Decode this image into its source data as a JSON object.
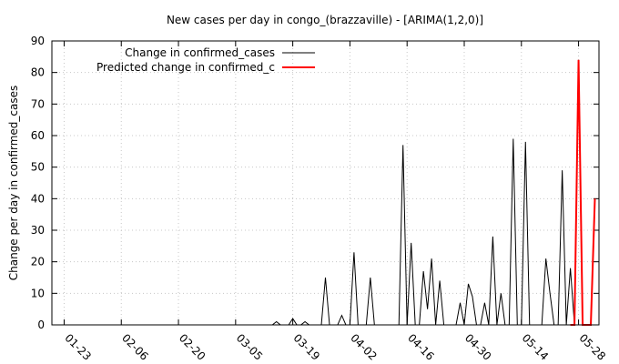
{
  "chart_data": {
    "type": "line",
    "title": "New cases per day in congo_(brazzaville) -  [ARIMA(1,2,0)]",
    "xlabel": "",
    "ylabel": "Change per day in confirmed_cases",
    "ylim": [
      0,
      90
    ],
    "yticks": [
      0,
      10,
      20,
      30,
      40,
      50,
      60,
      70,
      80,
      90
    ],
    "xlim": [
      "2020-01-20",
      "2020-06-02"
    ],
    "xticks": [
      "01-23",
      "02-06",
      "02-20",
      "03-05",
      "03-19",
      "04-02",
      "04-16",
      "04-30",
      "05-14",
      "05-28"
    ],
    "grid": true,
    "legend_position": "top-left",
    "series": [
      {
        "name": "Change in confirmed_cases",
        "color": "#000000",
        "x": [
          "2020-01-22",
          "2020-03-14",
          "2020-03-15",
          "2020-03-16",
          "2020-03-18",
          "2020-03-19",
          "2020-03-20",
          "2020-03-22",
          "2020-03-23",
          "2020-03-24",
          "2020-03-25",
          "2020-03-26",
          "2020-03-27",
          "2020-03-28",
          "2020-03-29",
          "2020-03-30",
          "2020-03-31",
          "2020-04-01",
          "2020-04-02",
          "2020-04-03",
          "2020-04-04",
          "2020-04-05",
          "2020-04-06",
          "2020-04-07",
          "2020-04-08",
          "2020-04-09",
          "2020-04-10",
          "2020-04-11",
          "2020-04-12",
          "2020-04-13",
          "2020-04-14",
          "2020-04-15",
          "2020-04-16",
          "2020-04-17",
          "2020-04-18",
          "2020-04-19",
          "2020-04-20",
          "2020-04-21",
          "2020-04-22",
          "2020-04-23",
          "2020-04-24",
          "2020-04-25",
          "2020-04-26",
          "2020-04-27",
          "2020-04-28",
          "2020-04-29",
          "2020-04-30",
          "2020-05-01",
          "2020-05-02",
          "2020-05-03",
          "2020-05-04",
          "2020-05-05",
          "2020-05-06",
          "2020-05-07",
          "2020-05-08",
          "2020-05-09",
          "2020-05-10",
          "2020-05-11",
          "2020-05-12",
          "2020-05-13",
          "2020-05-14",
          "2020-05-15",
          "2020-05-16",
          "2020-05-17",
          "2020-05-18",
          "2020-05-19",
          "2020-05-20",
          "2020-05-21",
          "2020-05-22",
          "2020-05-23",
          "2020-05-24"
        ],
        "y": [
          0,
          0,
          1,
          0,
          0,
          2,
          0,
          1,
          0,
          0,
          0,
          0,
          15,
          0,
          0,
          0,
          3,
          0,
          0,
          23,
          0,
          0,
          0,
          15,
          0,
          0,
          0,
          0,
          0,
          0,
          0,
          57,
          0,
          26,
          0,
          0,
          17,
          5,
          21,
          0,
          14,
          0,
          0,
          0,
          0,
          7,
          0,
          13,
          9,
          0,
          0,
          7,
          0,
          28,
          0,
          10,
          0,
          0,
          59,
          0,
          0,
          58,
          0,
          0,
          0,
          0,
          21,
          10,
          0,
          0,
          49
        ],
        "extra_x": [
          "2020-05-25",
          "2020-05-26",
          "2020-05-27"
        ],
        "extra_y": [
          0,
          18,
          0
        ]
      },
      {
        "name": "Predicted change in confirmed_c",
        "color": "#ff0000",
        "x": [
          "2020-05-26",
          "2020-05-27",
          "2020-05-28",
          "2020-05-29",
          "2020-05-30",
          "2020-05-31",
          "2020-06-01"
        ],
        "y": [
          0,
          0,
          84,
          0,
          0,
          0,
          40
        ]
      }
    ]
  }
}
